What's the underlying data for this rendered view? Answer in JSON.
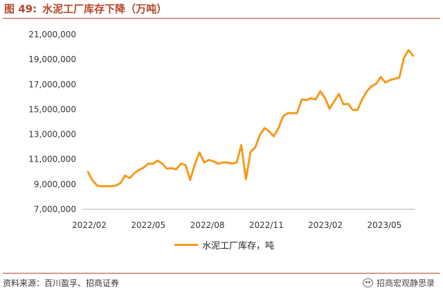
{
  "header": {
    "figure_prefix": "图 49:",
    "figure_title": "水泥工厂库存下降（万吨）"
  },
  "footer": {
    "source": "资料来源：百川盈孚、招商证券",
    "brand": "招商宏观静思录",
    "brand_icon": "wechat-icon"
  },
  "colors": {
    "line": "#f59a1b",
    "accent": "#b5462a",
    "axis": "#b0b0b0"
  },
  "chart_data": {
    "type": "line",
    "title": "水泥工厂库存下降（万吨）",
    "xlabel": "",
    "ylabel": "",
    "ylim": [
      7000000,
      21000000
    ],
    "y_ticks": [
      "7,000,000",
      "9,000,000",
      "11,000,000",
      "13,000,000",
      "15,000,000",
      "17,000,000",
      "19,000,000",
      "21,000,000"
    ],
    "x_tick_labels": [
      "2022/02",
      "2022/05",
      "2022/08",
      "2022/11",
      "2023/02",
      "2023/05"
    ],
    "grid": false,
    "legend_position": "bottom-center",
    "series": [
      {
        "name": "水泥工厂库存，吨",
        "values": [
          10000000,
          9300000,
          8900000,
          8850000,
          8850000,
          8850000,
          8900000,
          9100000,
          9700000,
          9500000,
          9900000,
          10150000,
          10350000,
          10650000,
          10650000,
          10900000,
          10650000,
          10250000,
          10300000,
          10200000,
          10650000,
          10550000,
          9350000,
          10600000,
          11550000,
          10750000,
          10950000,
          10850000,
          10650000,
          10750000,
          10750000,
          10650000,
          10750000,
          12150000,
          9400000,
          11600000,
          11950000,
          12950000,
          13500000,
          13250000,
          12850000,
          13500000,
          14450000,
          14700000,
          14700000,
          14700000,
          15800000,
          15750000,
          15900000,
          15800000,
          16450000,
          15950000,
          15050000,
          15650000,
          16250000,
          15400000,
          15450000,
          14950000,
          14950000,
          15800000,
          16450000,
          16850000,
          17050000,
          17600000,
          17150000,
          17350000,
          17450000,
          17550000,
          19150000,
          19750000,
          19300000
        ]
      }
    ]
  }
}
